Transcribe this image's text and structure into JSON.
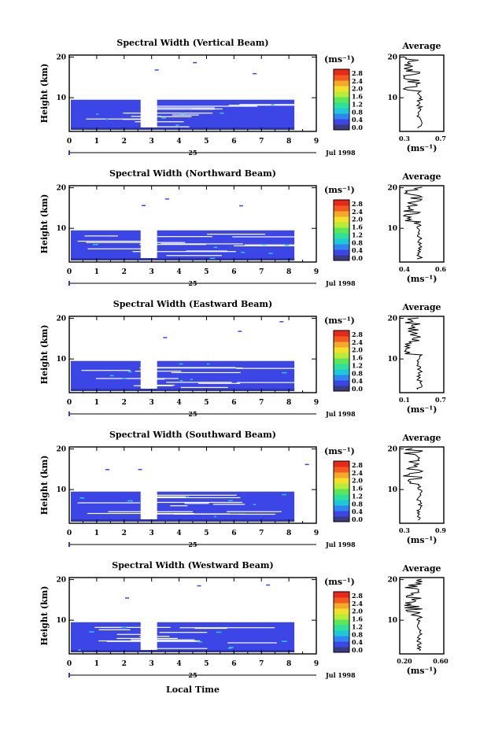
{
  "figure": {
    "xlabel_bottom": "Local Time",
    "date_label": "Jul 1998",
    "day_label": "25",
    "colorbar_unit": "(ms⁻¹)",
    "colorbar_ticks": [
      "0.0",
      "0.4",
      "0.8",
      "1.2",
      "1.6",
      "2.0",
      "2.4",
      "2.8"
    ],
    "colorbar_colors": [
      "#3a3a80",
      "#3c46e6",
      "#2f86ef",
      "#1fc8d8",
      "#2ee09a",
      "#5ae85a",
      "#b8ec38",
      "#f2e02a",
      "#f6a82a",
      "#f25a20",
      "#e82818"
    ],
    "x_ticks": [
      "0",
      "1",
      "2",
      "3",
      "4",
      "5",
      "6",
      "7",
      "8",
      "9"
    ],
    "height_ticks": [
      "20",
      "10"
    ],
    "avg_title": "Average",
    "avg_unit": "(ms⁻¹)"
  },
  "chart_data": [
    {
      "type": "heatmap",
      "title": "Spectral Width (Vertical Beam)",
      "ylabel": "Height (km)",
      "xlabel": "Local Time",
      "xlim": [
        0,
        9
      ],
      "ylim": [
        1.7,
        20.5
      ],
      "colorbar_unit": "(ms⁻¹)",
      "colorbar_range": [
        0.0,
        2.8
      ],
      "data_gap": [
        2.6,
        3.2
      ]
    },
    {
      "type": "line",
      "title": "Average",
      "ylabel": "Height (km)",
      "xlabel": "(ms⁻¹)",
      "x_ticks": [
        "0.3",
        "0.7"
      ],
      "ylim": [
        1.7,
        20.5
      ]
    },
    {
      "type": "heatmap",
      "title": "Spectral Width (Northward Beam)",
      "ylabel": "Height (km)",
      "xlabel": "Local Time",
      "xlim": [
        0,
        9
      ],
      "ylim": [
        1.7,
        20.5
      ],
      "colorbar_unit": "(ms⁻¹)",
      "colorbar_range": [
        0.0,
        2.8
      ],
      "data_gap": [
        2.6,
        3.2
      ]
    },
    {
      "type": "line",
      "title": "Average",
      "ylabel": "Height (km)",
      "xlabel": "(ms⁻¹)",
      "x_ticks": [
        "0.4",
        "0.6"
      ],
      "ylim": [
        1.7,
        20.5
      ]
    },
    {
      "type": "heatmap",
      "title": "Spectral Width (Eastward Beam)",
      "ylabel": "Height (km)",
      "xlabel": "Local Time",
      "xlim": [
        0,
        9
      ],
      "ylim": [
        1.7,
        20.5
      ],
      "colorbar_unit": "(ms⁻¹)",
      "colorbar_range": [
        0.0,
        2.8
      ],
      "data_gap": [
        2.6,
        3.2
      ]
    },
    {
      "type": "line",
      "title": "Average",
      "ylabel": "Height (km)",
      "xlabel": "(ms⁻¹)",
      "x_ticks": [
        "0.1",
        "0.7"
      ],
      "ylim": [
        1.7,
        20.5
      ]
    },
    {
      "type": "heatmap",
      "title": "Spectral Width (Southward Beam)",
      "ylabel": "Height (km)",
      "xlabel": "Local Time",
      "xlim": [
        0,
        9
      ],
      "ylim": [
        1.7,
        20.5
      ],
      "colorbar_unit": "(ms⁻¹)",
      "colorbar_range": [
        0.0,
        2.8
      ],
      "data_gap": [
        2.6,
        3.2
      ]
    },
    {
      "type": "line",
      "title": "Average",
      "ylabel": "Height (km)",
      "xlabel": "(ms⁻¹)",
      "x_ticks": [
        "0.3",
        "0.9"
      ],
      "ylim": [
        1.7,
        20.5
      ]
    },
    {
      "type": "heatmap",
      "title": "Spectral Width (Westward Beam)",
      "ylabel": "Height (km)",
      "xlabel": "Local Time",
      "xlim": [
        0,
        9
      ],
      "ylim": [
        1.7,
        20.5
      ],
      "colorbar_unit": "(ms⁻¹)",
      "colorbar_range": [
        0.0,
        2.8
      ],
      "data_gap": [
        2.6,
        3.2
      ]
    },
    {
      "type": "line",
      "title": "Average",
      "ylabel": "Height (km)",
      "xlabel": "(ms⁻¹)",
      "x_ticks": [
        "0.20",
        "0.60"
      ],
      "ylim": [
        1.7,
        20.5
      ]
    }
  ]
}
